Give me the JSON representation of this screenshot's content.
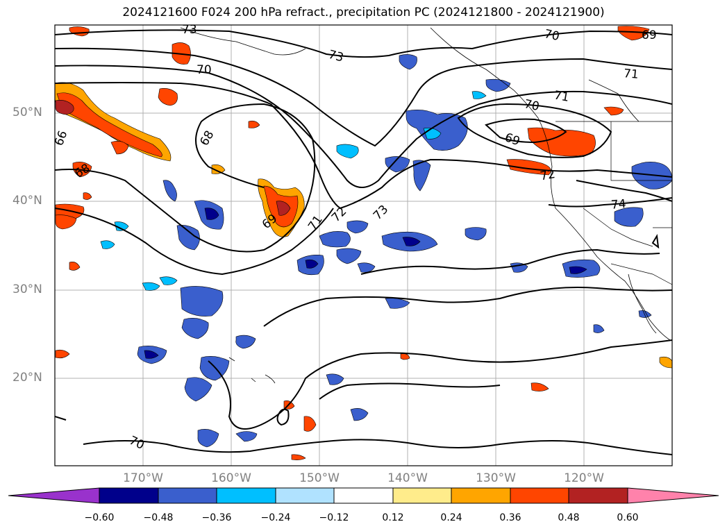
{
  "title": "2024121600 F024 200 hPa refract., precipitation PC (2024121800 - 2024121900)",
  "lat_labels": [
    "50°N",
    "40°N",
    "30°N",
    "20°N"
  ],
  "lon_labels": [
    "170°W",
    "160°W",
    "150°W",
    "140°W",
    "130°W",
    "120°W"
  ],
  "colorbar": {
    "ticks": [
      "−0.60",
      "−0.48",
      "−0.36",
      "−0.24",
      "−0.12",
      "0.12",
      "0.24",
      "0.36",
      "0.48",
      "0.60"
    ],
    "colors": [
      "#9932cc",
      "#00008b",
      "#3a5fcd",
      "#00bfff",
      "#b0e2ff",
      "#ffffff",
      "#ffec8b",
      "#ffa500",
      "#ff4500",
      "#b22222",
      "#ff82ab"
    ]
  },
  "contour_labels": [
    "73",
    "70",
    "68",
    "68",
    "69",
    "71",
    "72",
    "73",
    "73",
    "70",
    "71",
    "71",
    "70",
    "69",
    "72",
    "74",
    "70",
    "69",
    "66"
  ]
}
